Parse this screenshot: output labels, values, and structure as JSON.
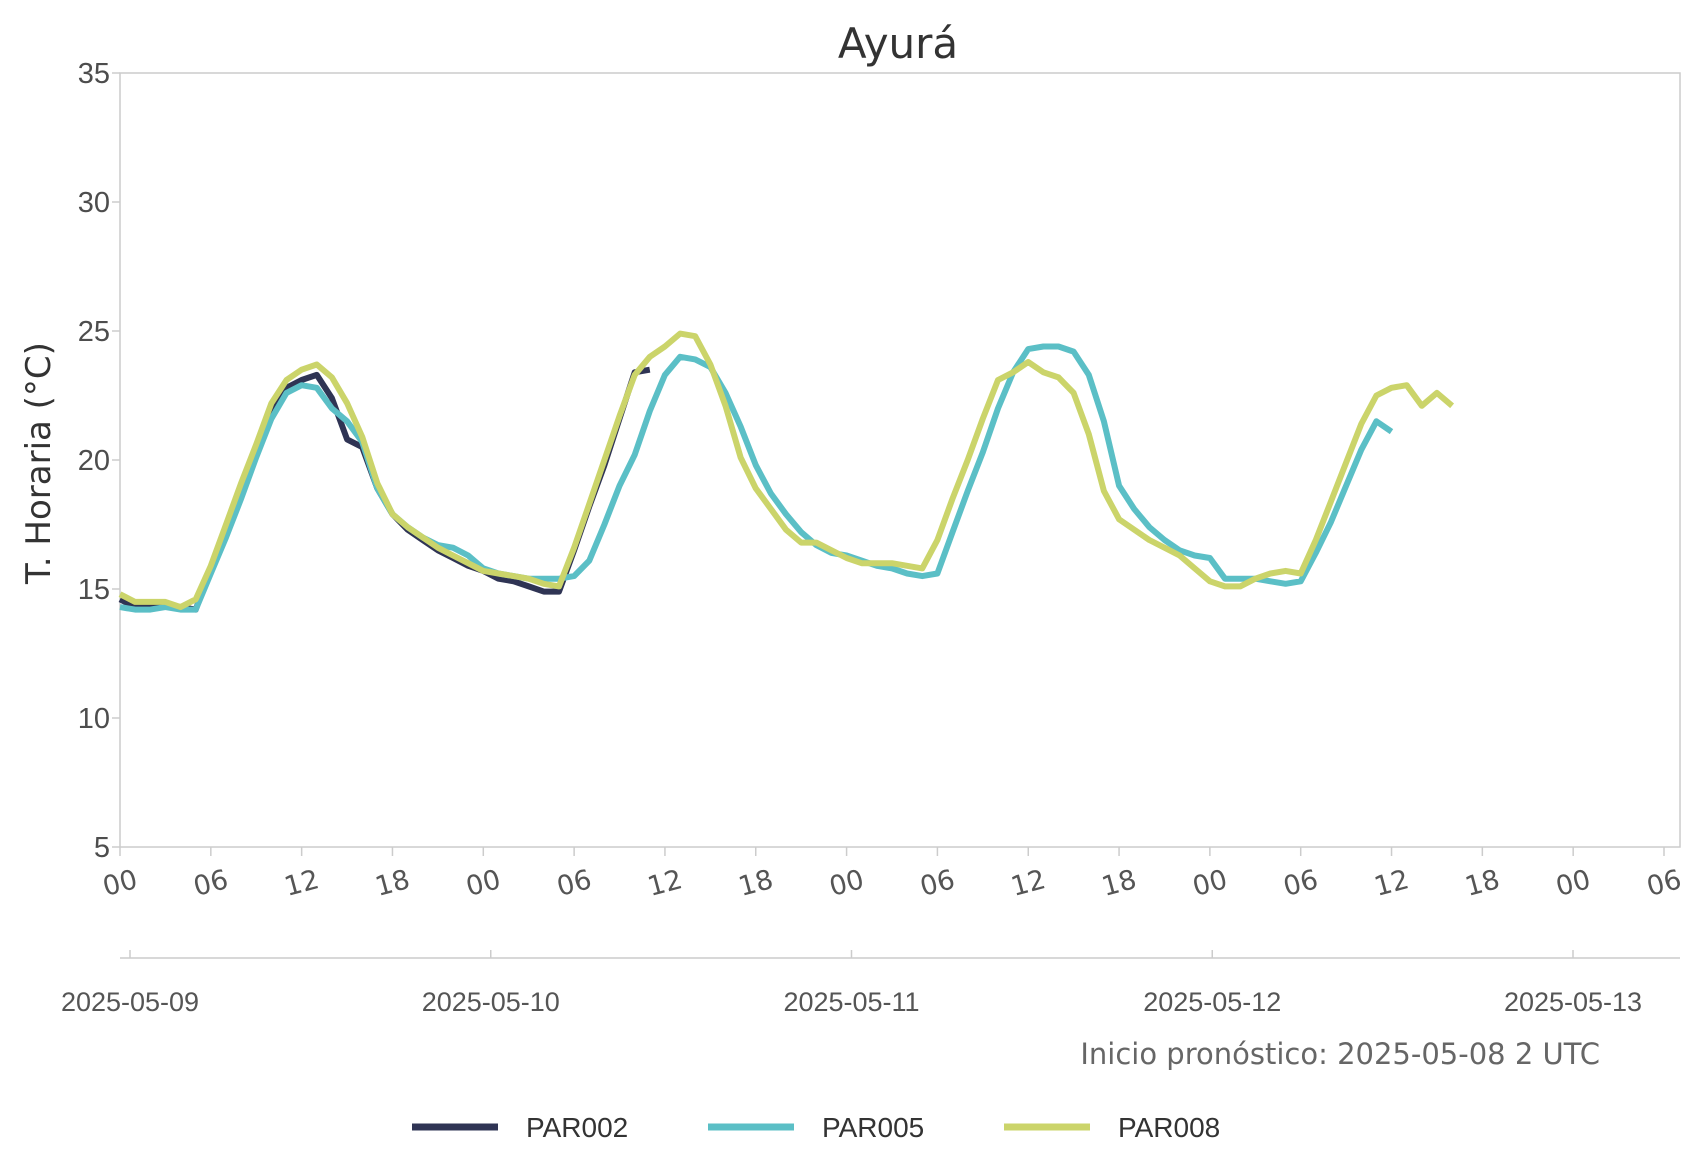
{
  "chart_data": {
    "type": "line",
    "title": "Ayurá",
    "ylabel": "T. Horaria (°C)",
    "ylim": [
      5,
      35
    ],
    "yticks": [
      "5",
      "10",
      "15",
      "20",
      "25",
      "30",
      "35"
    ],
    "x_start": "2025-05-09 00:00",
    "x_end": "2025-05-13 06:00",
    "hour_ticks": [
      "00",
      "06",
      "12",
      "18",
      "00",
      "06",
      "12",
      "18",
      "00",
      "06",
      "12",
      "18",
      "00",
      "06",
      "12",
      "18",
      "00",
      "06"
    ],
    "date_ticks": [
      "2025-05-09",
      "2025-05-10",
      "2025-05-11",
      "2025-05-12",
      "2025-05-13"
    ],
    "grid": false,
    "legend_position": "bottom",
    "note": "Inicio pronóstico: 2025-05-08 2 UTC",
    "series": [
      {
        "name": "PAR002",
        "color": "#2f3454",
        "x": [
          "2025-05-09 00:00",
          "2025-05-09 01:00",
          "2025-05-09 02:00",
          "2025-05-09 03:00",
          "2025-05-09 04:00",
          "2025-05-09 05:00",
          "2025-05-09 06:00",
          "2025-05-09 07:00",
          "2025-05-09 08:00",
          "2025-05-09 09:00",
          "2025-05-09 10:00",
          "2025-05-09 11:00",
          "2025-05-09 12:00",
          "2025-05-09 13:00",
          "2025-05-09 14:00",
          "2025-05-09 15:00",
          "2025-05-09 16:00",
          "2025-05-09 17:00",
          "2025-05-09 18:00",
          "2025-05-09 19:00",
          "2025-05-09 20:00",
          "2025-05-09 21:00",
          "2025-05-09 22:00",
          "2025-05-09 23:00",
          "2025-05-10 00:00",
          "2025-05-10 01:00",
          "2025-05-10 02:00",
          "2025-05-10 03:00",
          "2025-05-10 04:00",
          "2025-05-10 05:00",
          "2025-05-10 06:00",
          "2025-05-10 07:00",
          "2025-05-10 08:00",
          "2025-05-10 09:00",
          "2025-05-10 10:00",
          "2025-05-10 11:00"
        ],
        "y": [
          14.6,
          14.3,
          14.3,
          14.4,
          14.3,
          14.2,
          15.8,
          17.2,
          18.7,
          20.3,
          21.9,
          22.8,
          23.1,
          23.3,
          22.4,
          20.8,
          20.5,
          18.9,
          17.9,
          17.3,
          16.9,
          16.5,
          16.2,
          15.9,
          15.7,
          15.4,
          15.3,
          15.1,
          14.9,
          14.9,
          16.5,
          18.2,
          19.8,
          21.6,
          23.4,
          23.5
        ],
        "show_from": 0
      },
      {
        "name": "PAR005",
        "color": "#5bbfc6",
        "x": [
          "2025-05-09 00:00",
          "2025-05-09 01:00",
          "2025-05-09 02:00",
          "2025-05-09 03:00",
          "2025-05-09 04:00",
          "2025-05-09 05:00",
          "2025-05-09 06:00",
          "2025-05-09 07:00",
          "2025-05-09 08:00",
          "2025-05-09 09:00",
          "2025-05-09 10:00",
          "2025-05-09 11:00",
          "2025-05-09 12:00",
          "2025-05-09 13:00",
          "2025-05-09 14:00",
          "2025-05-09 15:00",
          "2025-05-09 16:00",
          "2025-05-09 17:00",
          "2025-05-09 18:00",
          "2025-05-09 19:00",
          "2025-05-09 20:00",
          "2025-05-09 21:00",
          "2025-05-09 22:00",
          "2025-05-09 23:00",
          "2025-05-10 00:00",
          "2025-05-10 01:00",
          "2025-05-10 02:00",
          "2025-05-10 03:00",
          "2025-05-10 04:00",
          "2025-05-10 05:00",
          "2025-05-10 06:00",
          "2025-05-10 07:00",
          "2025-05-10 08:00",
          "2025-05-10 09:00",
          "2025-05-10 10:00",
          "2025-05-10 11:00",
          "2025-05-10 12:00",
          "2025-05-10 13:00",
          "2025-05-10 14:00",
          "2025-05-10 15:00",
          "2025-05-10 16:00",
          "2025-05-10 17:00",
          "2025-05-10 18:00",
          "2025-05-10 19:00",
          "2025-05-10 20:00",
          "2025-05-10 21:00",
          "2025-05-10 22:00",
          "2025-05-10 23:00",
          "2025-05-11 00:00",
          "2025-05-11 01:00",
          "2025-05-11 02:00",
          "2025-05-11 03:00",
          "2025-05-11 04:00",
          "2025-05-11 05:00",
          "2025-05-11 06:00",
          "2025-05-11 07:00",
          "2025-05-11 08:00",
          "2025-05-11 09:00",
          "2025-05-11 10:00",
          "2025-05-11 11:00",
          "2025-05-11 12:00",
          "2025-05-11 13:00",
          "2025-05-11 14:00",
          "2025-05-11 15:00",
          "2025-05-11 16:00",
          "2025-05-11 17:00",
          "2025-05-11 18:00",
          "2025-05-11 19:00",
          "2025-05-11 20:00",
          "2025-05-11 21:00",
          "2025-05-11 22:00",
          "2025-05-11 23:00",
          "2025-05-12 00:00",
          "2025-05-12 01:00",
          "2025-05-12 02:00",
          "2025-05-12 03:00",
          "2025-05-12 04:00",
          "2025-05-12 05:00",
          "2025-05-12 06:00",
          "2025-05-12 07:00",
          "2025-05-12 08:00",
          "2025-05-12 09:00",
          "2025-05-12 10:00",
          "2025-05-12 11:00",
          "2025-05-12 12:00"
        ],
        "y": [
          14.3,
          14.2,
          14.2,
          14.3,
          14.2,
          14.2,
          15.6,
          17.0,
          18.5,
          20.1,
          21.6,
          22.6,
          22.9,
          22.8,
          22.0,
          21.5,
          20.7,
          18.9,
          17.9,
          17.4,
          17.0,
          16.7,
          16.6,
          16.3,
          15.8,
          15.6,
          15.5,
          15.4,
          15.4,
          15.4,
          15.5,
          16.1,
          17.5,
          19.0,
          20.2,
          21.9,
          23.3,
          24.0,
          23.9,
          23.6,
          22.6,
          21.3,
          19.8,
          18.7,
          17.9,
          17.2,
          16.7,
          16.4,
          16.3,
          16.1,
          15.9,
          15.8,
          15.6,
          15.5,
          15.6,
          17.2,
          18.8,
          20.3,
          22.0,
          23.4,
          24.3,
          24.4,
          24.4,
          24.2,
          23.3,
          21.5,
          19.0,
          18.1,
          17.4,
          16.9,
          16.5,
          16.3,
          16.2,
          15.4,
          15.4,
          15.4,
          15.3,
          15.2,
          15.3,
          16.4,
          17.6,
          19.0,
          20.4,
          21.5,
          21.1
        ],
        "show_from": 0
      },
      {
        "name": "PAR008",
        "color": "#cbd46a",
        "x": [
          "2025-05-09 00:00",
          "2025-05-09 01:00",
          "2025-05-09 02:00",
          "2025-05-09 03:00",
          "2025-05-09 04:00",
          "2025-05-09 05:00",
          "2025-05-09 06:00",
          "2025-05-09 07:00",
          "2025-05-09 08:00",
          "2025-05-09 09:00",
          "2025-05-09 10:00",
          "2025-05-09 11:00",
          "2025-05-09 12:00",
          "2025-05-09 13:00",
          "2025-05-09 14:00",
          "2025-05-09 15:00",
          "2025-05-09 16:00",
          "2025-05-09 17:00",
          "2025-05-09 18:00",
          "2025-05-09 19:00",
          "2025-05-09 20:00",
          "2025-05-09 21:00",
          "2025-05-09 22:00",
          "2025-05-09 23:00",
          "2025-05-10 00:00",
          "2025-05-10 01:00",
          "2025-05-10 02:00",
          "2025-05-10 03:00",
          "2025-05-10 04:00",
          "2025-05-10 05:00",
          "2025-05-10 06:00",
          "2025-05-10 07:00",
          "2025-05-10 08:00",
          "2025-05-10 09:00",
          "2025-05-10 10:00",
          "2025-05-10 11:00",
          "2025-05-10 12:00",
          "2025-05-10 13:00",
          "2025-05-10 14:00",
          "2025-05-10 15:00",
          "2025-05-10 16:00",
          "2025-05-10 17:00",
          "2025-05-10 18:00",
          "2025-05-10 19:00",
          "2025-05-10 20:00",
          "2025-05-10 21:00",
          "2025-05-10 22:00",
          "2025-05-10 23:00",
          "2025-05-11 00:00",
          "2025-05-11 01:00",
          "2025-05-11 02:00",
          "2025-05-11 03:00",
          "2025-05-11 04:00",
          "2025-05-11 05:00",
          "2025-05-11 06:00",
          "2025-05-11 07:00",
          "2025-05-11 08:00",
          "2025-05-11 09:00",
          "2025-05-11 10:00",
          "2025-05-11 11:00",
          "2025-05-11 12:00",
          "2025-05-11 13:00",
          "2025-05-11 14:00",
          "2025-05-11 15:00",
          "2025-05-11 16:00",
          "2025-05-11 17:00",
          "2025-05-11 18:00",
          "2025-05-11 19:00",
          "2025-05-11 20:00",
          "2025-05-11 21:00",
          "2025-05-11 22:00",
          "2025-05-11 23:00",
          "2025-05-12 00:00",
          "2025-05-12 01:00",
          "2025-05-12 02:00",
          "2025-05-12 03:00",
          "2025-05-12 04:00",
          "2025-05-12 05:00",
          "2025-05-12 06:00",
          "2025-05-12 07:00",
          "2025-05-12 08:00",
          "2025-05-12 09:00",
          "2025-05-12 10:00",
          "2025-05-12 11:00",
          "2025-05-12 12:00",
          "2025-05-12 13:00",
          "2025-05-12 14:00",
          "2025-05-12 15:00",
          "2025-05-12 16:00"
        ],
        "y": [
          14.8,
          14.5,
          14.5,
          14.5,
          14.3,
          14.6,
          15.9,
          17.5,
          19.1,
          20.6,
          22.2,
          23.1,
          23.5,
          23.7,
          23.2,
          22.2,
          20.9,
          19.1,
          17.9,
          17.4,
          17.0,
          16.6,
          16.3,
          16.0,
          15.7,
          15.6,
          15.5,
          15.4,
          15.2,
          15.1,
          16.6,
          18.3,
          20.0,
          21.7,
          23.3,
          24.0,
          24.4,
          24.9,
          24.8,
          23.7,
          22.1,
          20.1,
          18.9,
          18.1,
          17.3,
          16.8,
          16.8,
          16.5,
          16.2,
          16.0,
          16.0,
          16.0,
          15.9,
          15.8,
          16.9,
          18.5,
          20.0,
          21.6,
          23.1,
          23.4,
          23.8,
          23.4,
          23.2,
          22.6,
          21.0,
          18.8,
          17.7,
          17.3,
          16.9,
          16.6,
          16.3,
          15.8,
          15.3,
          15.1,
          15.1,
          15.4,
          15.6,
          15.7,
          15.6,
          16.9,
          18.4,
          19.9,
          21.4,
          22.5,
          22.8,
          22.9,
          22.1,
          22.6,
          22.1
        ],
        "show_from": 0
      }
    ]
  }
}
